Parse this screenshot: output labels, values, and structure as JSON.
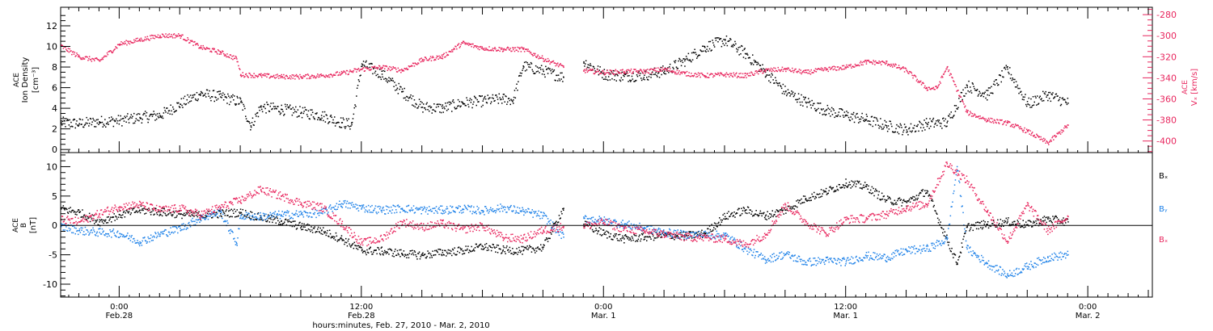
{
  "colors": {
    "black": "#000000",
    "red": "#e8265e",
    "blue": "#1f82e8",
    "frame": "#000000",
    "background": "#ffffff"
  },
  "xaxis": {
    "title": "hours:minutes, Feb. 27, 2010 - Mar.  2, 2010",
    "range_hours": [
      -2.9,
      51.2
    ],
    "major_ticks": [
      {
        "h": 0,
        "time": "0:00",
        "date": "Feb.28"
      },
      {
        "h": 12,
        "time": "12:00",
        "date": "Feb.28"
      },
      {
        "h": 24,
        "time": "0:00",
        "date": "Mar. 1"
      },
      {
        "h": 36,
        "time": "12:00",
        "date": "Mar. 1"
      },
      {
        "h": 48,
        "time": "0:00",
        "date": "Mar. 2"
      }
    ]
  },
  "chart_data": [
    {
      "type": "scatter",
      "panel": "top",
      "ylabel_left": [
        "ACE",
        "Ion Density",
        "[cm⁻³]"
      ],
      "ylabel_right": [
        "ACE",
        "Vₓ [km/s]"
      ],
      "ylim": [
        -0.3,
        13.8
      ],
      "yticks_left": [
        0,
        2,
        4,
        6,
        8,
        10,
        12
      ],
      "ylim_right": [
        -411,
        -273
      ],
      "yticks_right": [
        -400,
        -380,
        -360,
        -340,
        -320,
        -300,
        -280
      ],
      "series": [
        {
          "axis": "left",
          "color": "#000000",
          "x": [
            -2.9,
            -2,
            -1,
            0,
            1,
            2,
            3,
            4,
            5,
            6,
            6.5,
            7,
            8,
            9,
            10,
            11,
            11.5,
            12,
            13,
            14,
            15,
            16,
            17,
            18,
            19,
            19.5,
            20,
            21,
            22
          ],
          "values": [
            2.6,
            2.5,
            2.7,
            2.8,
            3.1,
            3.3,
            4.4,
            5.4,
            5.1,
            4.6,
            2.3,
            4.1,
            3.9,
            3.6,
            3.3,
            2.6,
            2.4,
            8.3,
            7.3,
            5.6,
            4.1,
            4.0,
            4.5,
            4.7,
            4.9,
            4.8,
            8.1,
            7.6,
            7.0
          ]
        },
        {
          "axis": "left",
          "color": "#000000",
          "x": [
            23,
            24,
            25,
            26,
            27,
            28,
            29,
            30,
            31,
            32,
            33,
            34,
            35,
            36,
            37,
            38,
            39,
            40,
            41,
            42,
            43,
            44,
            45,
            46,
            47
          ],
          "values": [
            8.5,
            7.3,
            7.1,
            7.2,
            7.6,
            8.6,
            9.9,
            10.6,
            9.3,
            7.5,
            5.6,
            4.6,
            3.8,
            3.3,
            2.9,
            2.3,
            1.9,
            2.5,
            2.6,
            6.2,
            5.3,
            7.8,
            4.4,
            5.3,
            4.5
          ]
        },
        {
          "axis": "right",
          "color": "#e8265e",
          "x": [
            -2.9,
            -2,
            -1,
            0,
            1,
            2,
            3,
            4,
            5,
            5.8,
            6,
            7,
            8,
            9,
            10,
            11,
            12,
            13,
            14,
            15,
            16,
            17,
            18,
            19,
            20,
            21,
            22
          ],
          "values": [
            -310,
            -320,
            -324,
            -308,
            -304,
            -300,
            -300,
            -311,
            -316,
            -322,
            -337,
            -338,
            -339,
            -339,
            -338,
            -336,
            -332,
            -330,
            -333,
            -323,
            -320,
            -307,
            -312,
            -313,
            -313,
            -322,
            -330
          ]
        },
        {
          "axis": "right",
          "color": "#e8265e",
          "x": [
            23,
            24,
            25,
            26,
            27,
            28,
            29,
            30,
            31,
            32,
            33,
            34,
            35,
            36,
            37,
            38,
            39,
            40,
            40.5,
            41,
            42,
            43,
            44,
            45,
            46,
            47
          ],
          "values": [
            -333,
            -335,
            -334,
            -334,
            -332,
            -336,
            -338,
            -337,
            -338,
            -333,
            -332,
            -335,
            -332,
            -330,
            -325,
            -326,
            -333,
            -350,
            -350,
            -330,
            -373,
            -380,
            -383,
            -391,
            -402,
            -385
          ]
        }
      ]
    },
    {
      "type": "scatter",
      "panel": "bottom",
      "ylabel_left": [
        "ACE",
        "B",
        "[nT]"
      ],
      "ylim": [
        -12.2,
        12.4
      ],
      "yticks_left": [
        -10,
        -5,
        0,
        5,
        10
      ],
      "legend": [
        "Bₓ",
        "Bᵧ",
        "Bₓ"
      ],
      "legend_placement": "right",
      "series": [
        {
          "name": "Bₓ",
          "color": "#000000",
          "x": [
            -2.9,
            -2,
            -1,
            0,
            1,
            2,
            3,
            4,
            5,
            6,
            7,
            8,
            9,
            10,
            11,
            12,
            13,
            14,
            15,
            16,
            17,
            18,
            19,
            20,
            21,
            22
          ],
          "values": [
            2.8,
            2.2,
            0.6,
            1.8,
            2.6,
            2.3,
            1.9,
            1.7,
            2.0,
            2.2,
            1.3,
            0.7,
            -0.2,
            -0.9,
            -2.3,
            -4.3,
            -4.4,
            -4.8,
            -5.1,
            -4.6,
            -4.3,
            -3.6,
            -4.2,
            -4.3,
            -3.7,
            2.9
          ]
        },
        {
          "name": "Bₓ",
          "color": "#000000",
          "x": [
            23,
            24,
            25,
            26,
            27,
            28,
            29,
            30,
            31,
            32,
            33,
            34,
            35,
            36,
            37,
            38,
            39,
            40,
            41,
            41.5,
            42,
            43,
            44,
            45,
            46,
            47
          ],
          "values": [
            0.2,
            -1.4,
            -2.3,
            -2.0,
            -1.7,
            -1.8,
            -1.4,
            1.5,
            2.6,
            1.6,
            2.6,
            4.6,
            5.7,
            7.2,
            6.6,
            4.3,
            3.9,
            5.9,
            -2.4,
            -6.4,
            -0.3,
            0.2,
            0.6,
            0.1,
            1.1,
            0.6
          ]
        },
        {
          "name": "Bᵧ",
          "color": "#1f82e8",
          "x": [
            -2.9,
            -2,
            -1,
            0,
            1,
            2,
            3,
            4,
            5,
            5.8,
            6,
            7,
            8,
            9,
            10,
            11,
            12,
            13,
            14,
            15,
            16,
            17,
            18,
            19,
            20,
            21,
            22
          ],
          "values": [
            -0.2,
            -0.9,
            -1.2,
            -1.4,
            -2.8,
            -1.5,
            -0.5,
            1.2,
            2.3,
            -3.1,
            1.6,
            1.5,
            1.8,
            1.9,
            2.1,
            3.7,
            3.0,
            2.6,
            2.9,
            2.6,
            2.6,
            2.8,
            2.5,
            3.0,
            2.4,
            1.6,
            -2.0
          ]
        },
        {
          "name": "Bᵧ",
          "color": "#1f82e8",
          "x": [
            23,
            24,
            25,
            26,
            27,
            28,
            29,
            30,
            31,
            32,
            33,
            34,
            35,
            36,
            37,
            38,
            39,
            40,
            41,
            41.5,
            42,
            43,
            44,
            45,
            46,
            47
          ],
          "values": [
            1.2,
            0.8,
            0.2,
            -0.5,
            -1.2,
            -1.6,
            -1.6,
            -1.7,
            -4.0,
            -5.8,
            -4.9,
            -6.3,
            -6.0,
            -6.2,
            -5.2,
            -5.5,
            -4.3,
            -4.0,
            -2.4,
            10.0,
            -4.0,
            -6.5,
            -8.5,
            -7.0,
            -5.5,
            -5.0
          ]
        },
        {
          "name": "Bₓ",
          "color": "#e8265e",
          "x": [
            -2.9,
            -2,
            -1,
            0,
            1,
            2,
            3,
            4,
            5,
            6,
            7,
            8,
            9,
            10,
            11,
            12,
            13,
            14,
            15,
            16,
            17,
            18,
            19,
            20,
            21,
            22
          ],
          "values": [
            1.0,
            0.6,
            2.0,
            3.2,
            3.5,
            2.6,
            2.9,
            1.8,
            3.1,
            4.3,
            6.1,
            5.0,
            3.8,
            3.1,
            0.3,
            -3.0,
            -2.3,
            0.6,
            -0.3,
            0.3,
            -0.7,
            -0.1,
            -2.1,
            -2.3,
            -0.8,
            -0.2
          ]
        },
        {
          "name": "Bₓ",
          "color": "#e8265e",
          "x": [
            23,
            24,
            25,
            26,
            27,
            28,
            29,
            30,
            31,
            32,
            33,
            34,
            35,
            36,
            37,
            38,
            39,
            40,
            41,
            42,
            43,
            44,
            45,
            46,
            47
          ],
          "values": [
            -0.1,
            0.5,
            -0.6,
            -1.0,
            -1.5,
            -2.0,
            -2.1,
            -2.3,
            -3.3,
            -1.6,
            3.5,
            0.6,
            -1.4,
            1.0,
            1.2,
            1.9,
            3.0,
            3.6,
            10.5,
            7.6,
            2.4,
            -2.7,
            3.5,
            -0.9,
            1.5
          ]
        }
      ]
    }
  ]
}
